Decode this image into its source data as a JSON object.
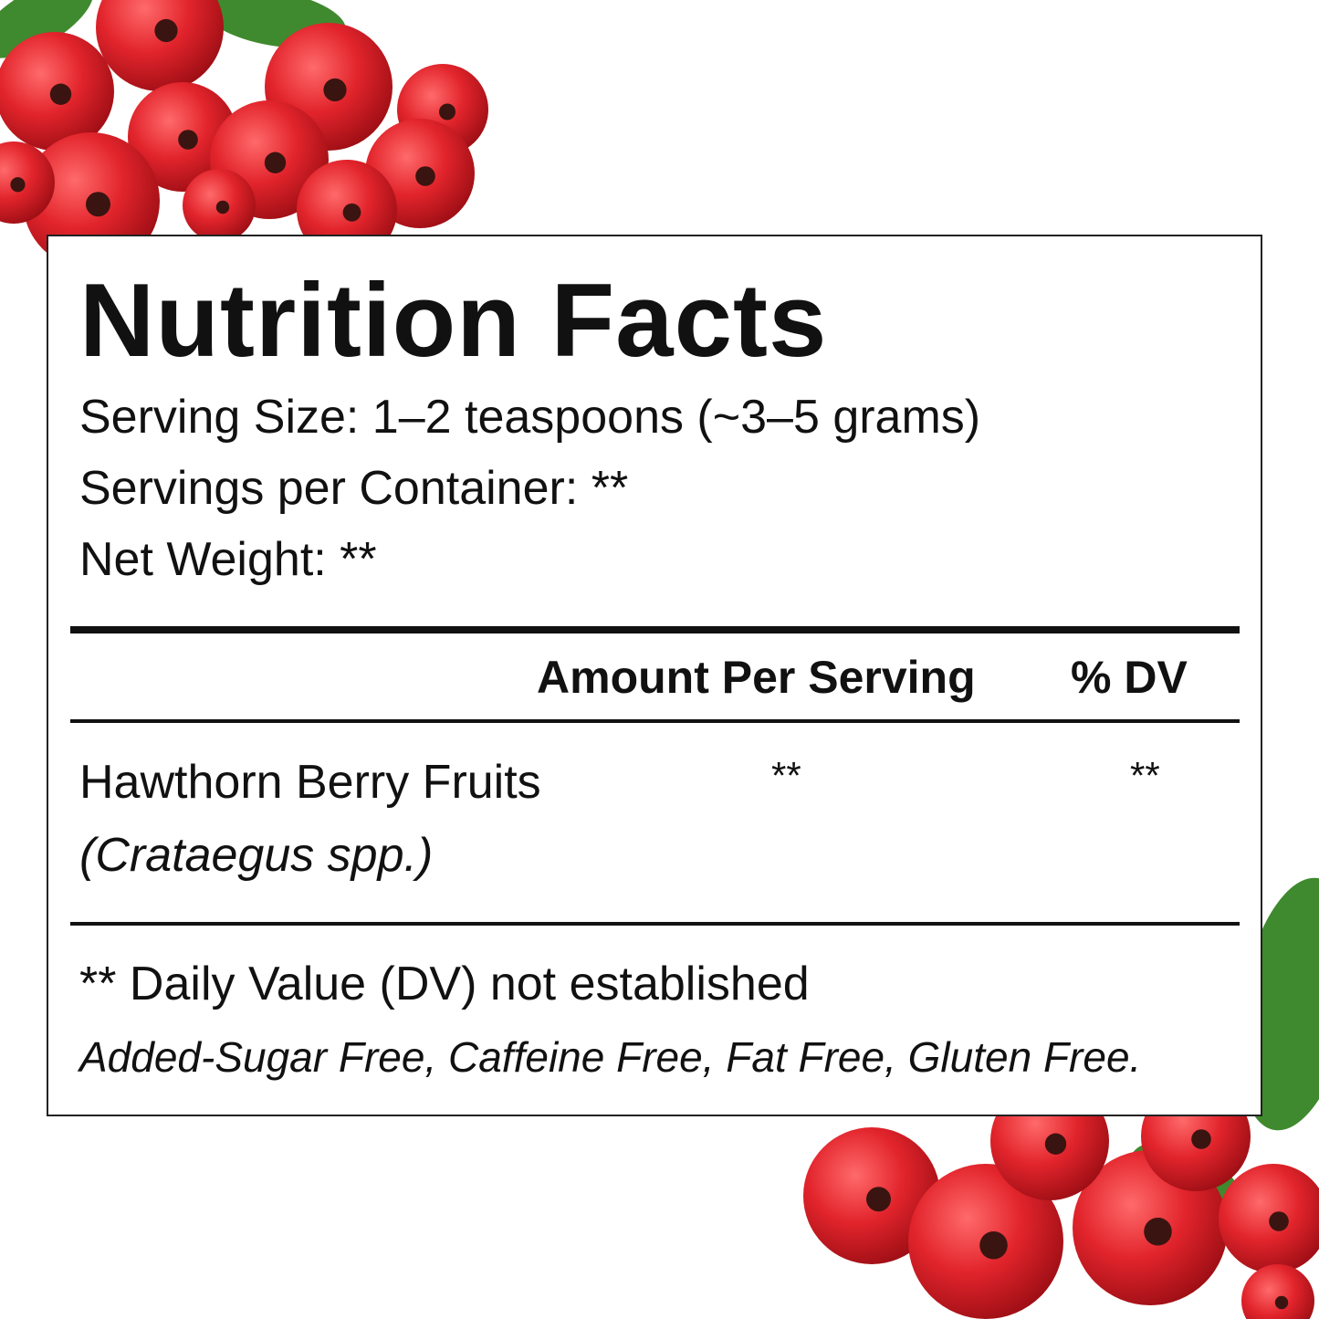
{
  "label": {
    "title": "Nutrition Facts",
    "serving_size": "Serving Size: 1–2 teaspoons (~3–5 grams)",
    "servings_per_container": "Servings per Container: **",
    "net_weight": "Net Weight: **",
    "columns": {
      "amount": "Amount Per Serving",
      "dv": "% DV"
    },
    "rows": [
      {
        "name": "Hawthorn Berry Fruits",
        "latin": "(Crataegus spp.)",
        "amount": "**",
        "dv": "**"
      }
    ],
    "footnote": "** Daily Value (DV) not established",
    "claims": "Added-Sugar Free, Caffeine Free, Fat Free, Gluten Free."
  },
  "colors": {
    "berry": "#e2242c",
    "leaf": "#3f8a2e",
    "text": "#111111"
  },
  "decor": {
    "image": "hawthorn-berries-photo"
  }
}
